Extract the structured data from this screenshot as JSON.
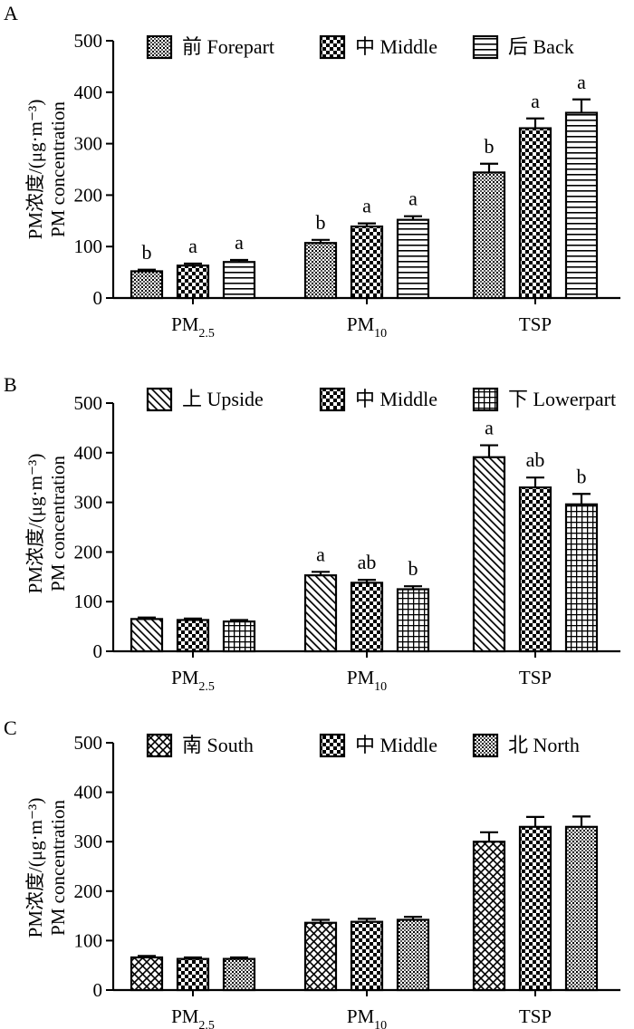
{
  "chart_data": [
    {
      "panel": "A",
      "type": "bar",
      "ylabel_cn": "PM浓度/(μg·m⁻³)",
      "ylabel_en": "PM concentration",
      "ylim": [
        0,
        500
      ],
      "yticks": [
        "0",
        "100",
        "200",
        "300",
        "400",
        "500"
      ],
      "categories": [
        {
          "main": "PM",
          "sub": "2.5"
        },
        {
          "main": "PM",
          "sub": "10"
        },
        {
          "main": "TSP",
          "sub": ""
        }
      ],
      "series": [
        {
          "name": "前 Forepart",
          "pattern": "dots",
          "values": [
            52,
            107,
            244
          ],
          "errors": [
            3,
            6,
            17
          ],
          "letters": [
            "b",
            "b",
            "b"
          ]
        },
        {
          "name": "中 Middle",
          "pattern": "checker",
          "values": [
            63,
            139,
            330
          ],
          "errors": [
            4,
            6,
            19
          ],
          "letters": [
            "a",
            "a",
            "a"
          ]
        },
        {
          "name": "后 Back",
          "pattern": "hlines",
          "values": [
            70,
            152,
            360
          ],
          "errors": [
            4,
            7,
            26
          ],
          "letters": [
            "a",
            "a",
            "a"
          ]
        }
      ]
    },
    {
      "panel": "B",
      "type": "bar",
      "ylabel_cn": "PM浓度/(μg·m⁻³)",
      "ylabel_en": "PM concentration",
      "ylim": [
        0,
        500
      ],
      "yticks": [
        "0",
        "100",
        "200",
        "300",
        "400",
        "500"
      ],
      "categories": [
        {
          "main": "PM",
          "sub": "2.5"
        },
        {
          "main": "PM",
          "sub": "10"
        },
        {
          "main": "TSP",
          "sub": ""
        }
      ],
      "series": [
        {
          "name": "上 Upside",
          "pattern": "diag",
          "values": [
            65,
            153,
            391
          ],
          "errors": [
            3,
            7,
            24
          ],
          "letters": [
            "",
            "a",
            "a"
          ]
        },
        {
          "name": "中 Middle",
          "pattern": "checker",
          "values": [
            63,
            138,
            330
          ],
          "errors": [
            3,
            6,
            20
          ],
          "letters": [
            "",
            "ab",
            "ab"
          ]
        },
        {
          "name": "下 Lowerpart",
          "pattern": "grid",
          "values": [
            60,
            125,
            296
          ],
          "errors": [
            3,
            6,
            21
          ],
          "letters": [
            "",
            "b",
            "b"
          ]
        }
      ]
    },
    {
      "panel": "C",
      "type": "bar",
      "ylabel_cn": "PM浓度/(μg·m⁻³)",
      "ylabel_en": "PM concentration",
      "ylim": [
        0,
        500
      ],
      "yticks": [
        "0",
        "100",
        "200",
        "300",
        "400",
        "500"
      ],
      "categories": [
        {
          "main": "PM",
          "sub": "2.5"
        },
        {
          "main": "PM",
          "sub": "10"
        },
        {
          "main": "TSP",
          "sub": ""
        }
      ],
      "series": [
        {
          "name": "南 South",
          "pattern": "crosshatch",
          "values": [
            66,
            136,
            300
          ],
          "errors": [
            3,
            6,
            19
          ],
          "letters": [
            "",
            "",
            ""
          ]
        },
        {
          "name": "中 Middle",
          "pattern": "checker",
          "values": [
            63,
            138,
            330
          ],
          "errors": [
            3,
            6,
            20
          ],
          "letters": [
            "",
            "",
            ""
          ]
        },
        {
          "name": "北 North",
          "pattern": "dots",
          "values": [
            63,
            142,
            330
          ],
          "errors": [
            3,
            6,
            21
          ],
          "letters": [
            "",
            "",
            ""
          ]
        }
      ]
    }
  ]
}
